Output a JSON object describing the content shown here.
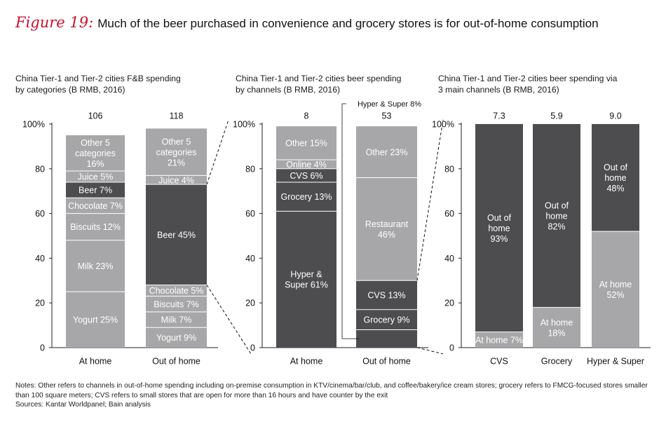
{
  "figure": {
    "label": "Figure 19:",
    "title": "Much of the beer purchased in convenience and grocery stores is for out-of-home consumption"
  },
  "colors": {
    "light": "#a7a7a9",
    "dark": "#4d4d4f",
    "divider": "#ffffff",
    "axis": "#222222"
  },
  "chart_data": [
    {
      "type": "bar",
      "stacked": true,
      "normalized": true,
      "title": "China Tier-1 and Tier-2 cities F&B spending\nby categories (B RMB, 2016)",
      "ylim": [
        0,
        100
      ],
      "yticks": [
        "0",
        "20",
        "40",
        "60",
        "80",
        "100%"
      ],
      "categories": [
        "At home",
        "Out of home"
      ],
      "totals": [
        "106",
        "118"
      ],
      "bars": [
        {
          "segments": [
            {
              "label": "Yogurt 25%",
              "value": 25,
              "shade": "light"
            },
            {
              "label": "Milk 23%",
              "value": 23,
              "shade": "light"
            },
            {
              "label": "Biscuits 12%",
              "value": 12,
              "shade": "light"
            },
            {
              "label": "Chocolate 7%",
              "value": 7,
              "shade": "light"
            },
            {
              "label": "Beer 7%",
              "value": 7,
              "shade": "dark"
            },
            {
              "label": "Juice 5%",
              "value": 5,
              "shade": "light"
            },
            {
              "label": "Other 5\ncategories\n16%",
              "value": 16,
              "shade": "light"
            }
          ]
        },
        {
          "segments": [
            {
              "label": "Yogurt 9%",
              "value": 9,
              "shade": "light"
            },
            {
              "label": "Milk 7%",
              "value": 7,
              "shade": "light"
            },
            {
              "label": "Biscuits 7%",
              "value": 7,
              "shade": "light"
            },
            {
              "label": "Chocolate 5%",
              "value": 5,
              "shade": "light"
            },
            {
              "label": "Beer 45%",
              "value": 45,
              "shade": "dark"
            },
            {
              "label": "Juice 4%",
              "value": 4,
              "shade": "light"
            },
            {
              "label": "Other 5\ncategories\n21%",
              "value": 21,
              "shade": "light"
            }
          ]
        }
      ]
    },
    {
      "type": "bar",
      "stacked": true,
      "normalized": true,
      "title": "China Tier-1 and Tier-2 cities beer spending\nby channels (B RMB, 2016)",
      "ylim": [
        0,
        100
      ],
      "yticks": [
        "0",
        "20",
        "40",
        "60",
        "80",
        "100%"
      ],
      "categories": [
        "At home",
        "Out of home"
      ],
      "totals": [
        "8",
        "53"
      ],
      "bars": [
        {
          "segments": [
            {
              "label": "Hyper &\nSuper 61%",
              "value": 61,
              "shade": "dark"
            },
            {
              "label": "Grocery 13%",
              "value": 13,
              "shade": "dark"
            },
            {
              "label": "CVS 6%",
              "value": 6,
              "shade": "dark"
            },
            {
              "label": "Online 4%",
              "value": 4,
              "shade": "light"
            },
            {
              "label": "Other 15%",
              "value": 15,
              "shade": "light"
            }
          ]
        },
        {
          "segments": [
            {
              "label": "Hyper & Super 8%",
              "value": 8,
              "shade": "dark",
              "callout": true
            },
            {
              "label": "Grocery 9%",
              "value": 9,
              "shade": "dark"
            },
            {
              "label": "CVS 13%",
              "value": 13,
              "shade": "dark"
            },
            {
              "label": "Restaurant\n46%",
              "value": 46,
              "shade": "light"
            },
            {
              "label": "Other 23%",
              "value": 23,
              "shade": "light"
            }
          ]
        }
      ]
    },
    {
      "type": "bar",
      "stacked": true,
      "normalized": true,
      "title": "China Tier-1 and Tier-2 cities beer spending via\n3 main channels (B RMB, 2016)",
      "ylim": [
        0,
        100
      ],
      "yticks": [
        "0",
        "20",
        "40",
        "60",
        "80",
        "100%"
      ],
      "categories": [
        "CVS",
        "Grocery",
        "Hyper & Super"
      ],
      "totals": [
        "7.3",
        "5.9",
        "9.0"
      ],
      "bars": [
        {
          "segments": [
            {
              "label": "At home 7%",
              "value": 7,
              "shade": "light"
            },
            {
              "label": "Out of\nhome\n93%",
              "value": 93,
              "shade": "dark"
            }
          ]
        },
        {
          "segments": [
            {
              "label": "At home\n18%",
              "value": 18,
              "shade": "light"
            },
            {
              "label": "Out of\nhome\n82%",
              "value": 82,
              "shade": "dark"
            }
          ]
        },
        {
          "segments": [
            {
              "label": "At home\n52%",
              "value": 52,
              "shade": "light"
            },
            {
              "label": "Out of\nhome\n48%",
              "value": 48,
              "shade": "dark"
            }
          ]
        }
      ]
    }
  ],
  "notes": {
    "line1": "Notes: Other refers to channels in out-of-home spending including on-premise consumption in KTV/cinema/bar/club, and coffee/bakery/ice cream stores; grocery refers to FMCG-focused stores smaller than 100 square meters; CVS refers to small stores that are open for more than 16 hours and have counter by the exit",
    "line2": "Sources: Kantar Worldpanel; Bain analysis"
  }
}
